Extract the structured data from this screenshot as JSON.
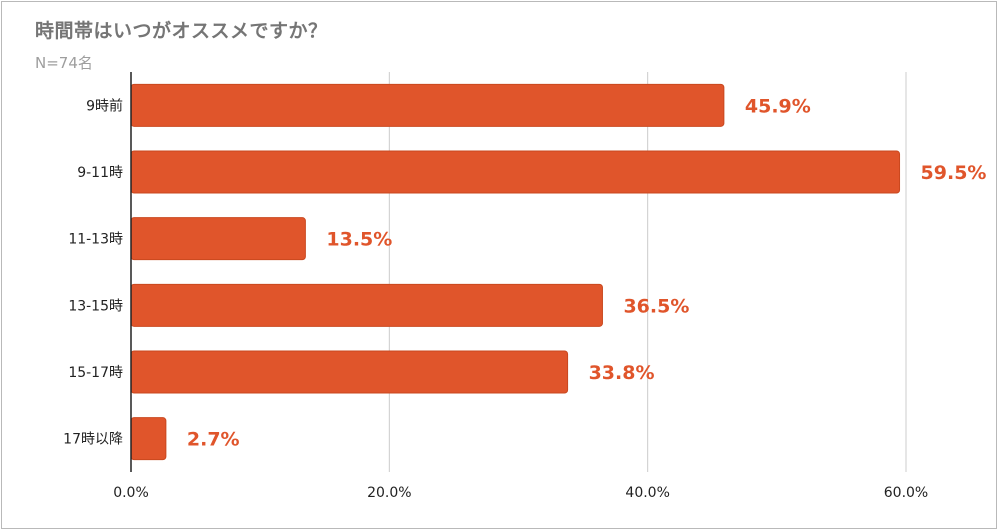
{
  "chart_data": {
    "type": "bar",
    "orientation": "horizontal",
    "title": "時間帯はいつがオススメですか？",
    "subtitle": "N=74名",
    "categories": [
      "9時前",
      "9-11時",
      "11-13時",
      "13-15時",
      "15-17時",
      "17時以降"
    ],
    "values": [
      45.9,
      59.5,
      13.5,
      36.5,
      33.8,
      2.7
    ],
    "data_labels": [
      "45.9%",
      "59.5%",
      "13.5%",
      "36.5%",
      "33.8%",
      "2.7%"
    ],
    "x_ticks": [
      0,
      20,
      40,
      60
    ],
    "x_tick_labels": [
      "0.0%",
      "20.0%",
      "40.0%",
      "60.0%"
    ],
    "xlim": [
      0,
      60
    ],
    "grid": "vertical",
    "legend": "none",
    "colors": {
      "bar": "#e0552b",
      "bar_outline": "#c9481f",
      "data_label": "#e0552b",
      "grid": "#cccccc",
      "axis": "#222222"
    }
  }
}
